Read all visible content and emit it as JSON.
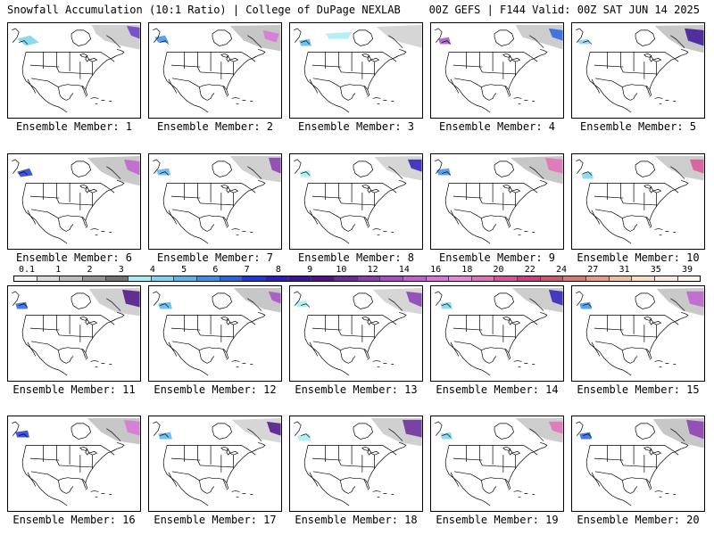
{
  "header": {
    "title_left": "Snowfall Accumulation (10:1 Ratio) | College of DuPage NEXLAB",
    "title_right": "00Z GEFS | F144 Valid: 00Z SAT JUN 14 2025"
  },
  "panels": [
    {
      "label": "Ensemble Member: 1"
    },
    {
      "label": "Ensemble Member: 2"
    },
    {
      "label": "Ensemble Member: 3"
    },
    {
      "label": "Ensemble Member: 4"
    },
    {
      "label": "Ensemble Member: 5"
    },
    {
      "label": "Ensemble Member: 6"
    },
    {
      "label": "Ensemble Member: 7"
    },
    {
      "label": "Ensemble Member: 8"
    },
    {
      "label": "Ensemble Member: 9"
    },
    {
      "label": "Ensemble Member: 10"
    },
    {
      "label": "Ensemble Member: 11"
    },
    {
      "label": "Ensemble Member: 12"
    },
    {
      "label": "Ensemble Member: 13"
    },
    {
      "label": "Ensemble Member: 14"
    },
    {
      "label": "Ensemble Member: 15"
    },
    {
      "label": "Ensemble Member: 16"
    },
    {
      "label": "Ensemble Member: 17"
    },
    {
      "label": "Ensemble Member: 18"
    },
    {
      "label": "Ensemble Member: 19"
    },
    {
      "label": "Ensemble Member: 20"
    }
  ],
  "colorbar": {
    "ticks": [
      "0.1",
      "1",
      "2",
      "3",
      "4",
      "5",
      "6",
      "7",
      "8",
      "9",
      "10",
      "12",
      "14",
      "16",
      "18",
      "20",
      "22",
      "24",
      "27",
      "31",
      "35",
      "39"
    ],
    "colors": [
      "#f4f4f4",
      "#d9d9d9",
      "#bdbdbd",
      "#969696",
      "#737373",
      "#a6ecf2",
      "#7dd3f0",
      "#5ab4ec",
      "#3f8fe8",
      "#2a63e0",
      "#1f39d6",
      "#2d1fb8",
      "#3d1498",
      "#4f1288",
      "#6a2a9e",
      "#8a3cb2",
      "#a64fc4",
      "#c060d0",
      "#d873d8",
      "#e887d8",
      "#e270b8",
      "#d6559a",
      "#c93f80",
      "#c85a6e",
      "#d67a70",
      "#e49c84",
      "#efbda0",
      "#f7dcc2",
      "#fbeadb",
      "#fdf5ea"
    ]
  }
}
